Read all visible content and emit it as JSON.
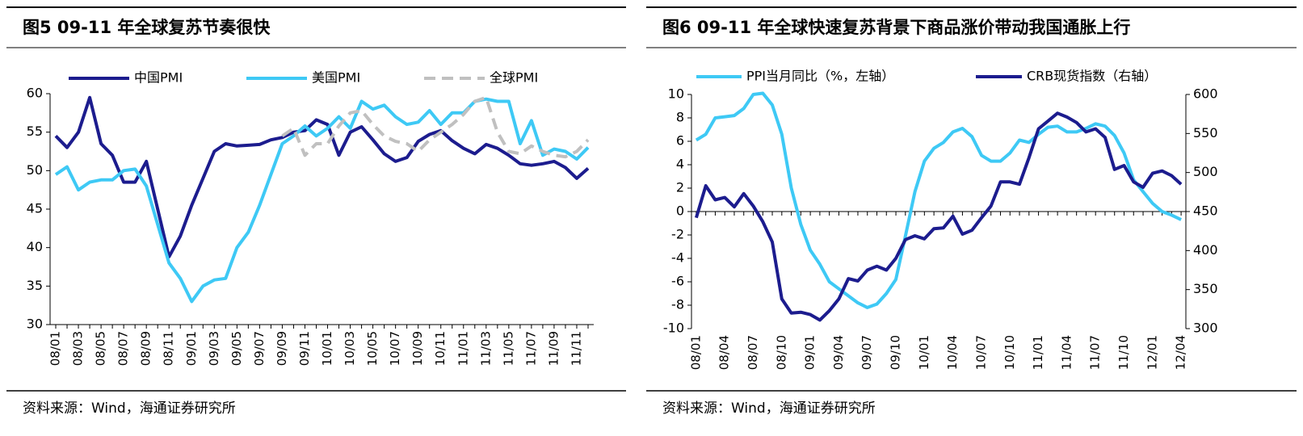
{
  "chart_data": [
    {
      "type": "line",
      "title": "图5  09-11 年全球复苏节奏很快",
      "source": "资料来源：Wind，海通证券研究所",
      "categories": [
        "08/01",
        null,
        "08/03",
        null,
        "08/05",
        null,
        "08/07",
        null,
        "08/09",
        null,
        "08/11",
        null,
        "09/01",
        null,
        "09/03",
        null,
        "09/05",
        null,
        "09/07",
        null,
        "09/09",
        null,
        "09/11",
        null,
        "10/01",
        null,
        "10/03",
        null,
        "10/05",
        null,
        "10/07",
        null,
        "10/09",
        null,
        "10/11",
        null,
        "11/01",
        null,
        "11/03",
        null,
        "11/05",
        null,
        "11/07",
        null,
        "11/09",
        null,
        "11/11",
        null
      ],
      "ylim": [
        30,
        60
      ],
      "yticks": [
        30,
        35,
        40,
        45,
        50,
        55,
        60
      ],
      "grid": false,
      "series": [
        {
          "name": "中国PMI",
          "color": "#1c1c8e",
          "dash": false,
          "values": [
            54.5,
            53,
            55,
            59.5,
            53.5,
            52,
            48.5,
            48.5,
            51.2,
            45,
            38.8,
            41.5,
            45.5,
            49,
            52.5,
            53.5,
            53.2,
            53.3,
            53.4,
            54,
            54.3,
            55,
            55.2,
            56.6,
            56,
            52,
            55,
            55.7,
            54,
            52.2,
            51.2,
            51.7,
            53.8,
            54.7,
            55.2,
            53.9,
            52.9,
            52.2,
            53.4,
            52.9,
            52,
            50.9,
            50.7,
            50.9,
            51.2,
            50.4,
            49,
            50.3
          ]
        },
        {
          "name": "美国PMI",
          "color": "#3ec9f5",
          "dash": false,
          "values": [
            49.5,
            50.5,
            47.5,
            48.5,
            48.8,
            48.8,
            50,
            50.2,
            48,
            43,
            38,
            36,
            33,
            35,
            35.8,
            36,
            40,
            42,
            45.5,
            49.5,
            53.5,
            54.5,
            55.8,
            54.5,
            55.5,
            57,
            55.5,
            59,
            58,
            58.5,
            57,
            56,
            56.3,
            57.8,
            56,
            57.5,
            57.5,
            59,
            59.3,
            59,
            59,
            53.5,
            56.5,
            52,
            52.8,
            52.5,
            51.5,
            53
          ]
        },
        {
          "name": "全球PMI",
          "color": "#c0c0c0",
          "dash": true,
          "values": [
            null,
            null,
            null,
            null,
            null,
            null,
            null,
            null,
            null,
            null,
            null,
            null,
            null,
            null,
            null,
            null,
            null,
            null,
            null,
            null,
            54.5,
            55.5,
            52,
            53.5,
            53.5,
            55.8,
            57.5,
            57.8,
            56,
            54.5,
            53.8,
            53.5,
            52.5,
            54,
            55,
            56,
            57.3,
            59,
            59.5,
            55,
            52.5,
            52.2,
            53.2,
            52.5,
            52,
            51.8,
            52.5,
            54
          ]
        }
      ]
    },
    {
      "type": "line",
      "title": "图6  09-11 年全球快速复苏背景下商品涨价带动我国通胀上行",
      "source": "资料来源：Wind，海通证券研究所",
      "categories": [
        "08/01",
        null,
        null,
        "08/04",
        null,
        null,
        "08/07",
        null,
        null,
        "08/10",
        null,
        null,
        "09/01",
        null,
        null,
        "09/04",
        null,
        null,
        "09/07",
        null,
        null,
        "09/10",
        null,
        null,
        "10/01",
        null,
        null,
        "10/04",
        null,
        null,
        "10/07",
        null,
        null,
        "10/10",
        null,
        null,
        "11/01",
        null,
        null,
        "11/04",
        null,
        null,
        "11/07",
        null,
        null,
        "11/10",
        null,
        null,
        "12/01",
        null,
        null,
        "12/04"
      ],
      "ylim": [
        -10,
        10
      ],
      "yticks": [
        -10,
        -8,
        -6,
        -4,
        -2,
        0,
        2,
        4,
        6,
        8,
        10
      ],
      "y2lim": [
        300,
        600
      ],
      "y2ticks": [
        300,
        350,
        400,
        450,
        500,
        550,
        600
      ],
      "grid": false,
      "series": [
        {
          "name": "PPI当月同比（%，左轴）",
          "color": "#3ec9f5",
          "dash": false,
          "values": [
            6.1,
            6.6,
            8.0,
            8.1,
            8.2,
            8.8,
            10.0,
            10.1,
            9.1,
            6.6,
            2.0,
            -1.1,
            -3.3,
            -4.5,
            -6.0,
            -6.6,
            -7.2,
            -7.8,
            -8.2,
            -7.9,
            -7.0,
            -5.8,
            -2.1,
            1.7,
            4.3,
            5.4,
            5.9,
            6.8,
            7.1,
            6.4,
            4.8,
            4.3,
            4.3,
            5.0,
            6.1,
            5.9,
            6.6,
            7.2,
            7.3,
            6.8,
            6.8,
            7.1,
            7.5,
            7.3,
            6.5,
            5.0,
            2.7,
            1.7,
            0.7,
            0.0,
            -0.3,
            -0.7
          ]
        },
        {
          "name": "CRB现货指数（右轴）",
          "color": "#1c1c8e",
          "dash": false,
          "axis": "y2",
          "values": [
            442,
            483,
            465,
            468,
            456,
            473,
            457,
            437,
            411,
            338,
            320,
            321,
            318,
            311,
            323,
            338,
            364,
            361,
            375,
            380,
            375,
            390,
            414,
            419,
            415,
            428,
            429,
            444,
            421,
            426,
            442,
            457,
            488,
            488,
            485,
            519,
            556,
            566,
            576,
            571,
            564,
            552,
            556,
            545,
            504,
            509,
            488,
            481,
            499,
            502,
            496,
            485
          ]
        }
      ]
    }
  ]
}
